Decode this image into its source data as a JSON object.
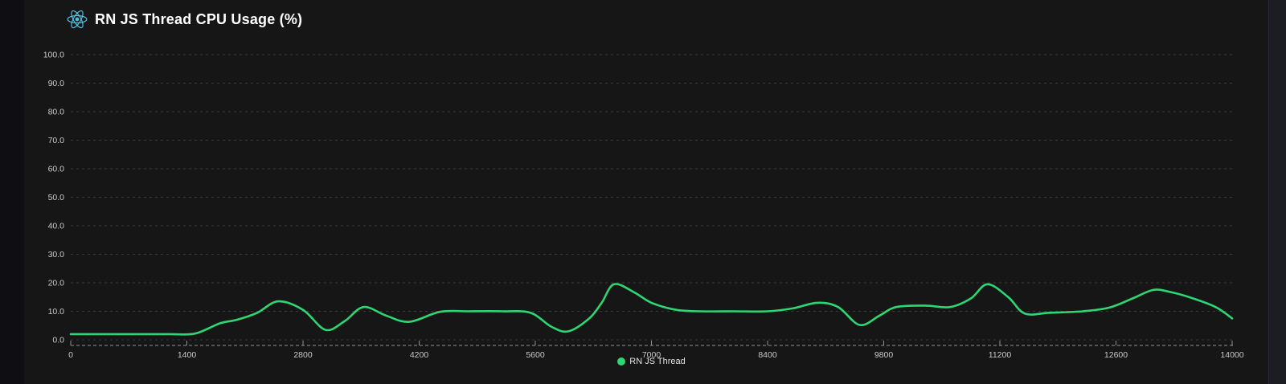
{
  "page": {
    "background": "#0f0f13",
    "card_background": "#161616",
    "right_strip_background": "#1c1c23"
  },
  "header": {
    "title": "RN JS Thread CPU Usage (%)",
    "icon": "react-logo-icon",
    "icon_color": "#53c1de"
  },
  "legend": {
    "label": "RN JS Thread",
    "marker_color": "#2ed573"
  },
  "colors": {
    "line": "#2ed573",
    "gridline": "#3a3a3c",
    "axis": "#909094",
    "tick_label": "#c9c9c9",
    "title_text": "#ffffff"
  },
  "chart_data": {
    "type": "line",
    "title": "RN JS Thread CPU Usage (%)",
    "xlabel": "",
    "ylabel": "",
    "xlim": [
      0,
      14000
    ],
    "ylim": [
      0,
      100
    ],
    "grid": "dashed-horizontal",
    "legend_position": "bottom-center",
    "x_ticks": [
      0,
      1400,
      2800,
      4200,
      5600,
      7000,
      8400,
      9800,
      11200,
      12600,
      14000
    ],
    "x_tick_labels": [
      "0",
      "1400",
      "2800",
      "4200",
      "5600",
      "7000",
      "8400",
      "9800",
      "11200",
      "12600",
      "14000"
    ],
    "y_ticks": [
      0,
      10,
      20,
      30,
      40,
      50,
      60,
      70,
      80,
      90,
      100
    ],
    "y_tick_labels": [
      "0.0",
      "10.0",
      "20.0",
      "30.0",
      "40.0",
      "50.0",
      "60.0",
      "70.0",
      "80.0",
      "90.0",
      "100.0"
    ],
    "series": [
      {
        "name": "RN JS Thread",
        "color": "#2ed573",
        "points": [
          [
            0,
            2
          ],
          [
            400,
            2
          ],
          [
            800,
            2
          ],
          [
            1200,
            2
          ],
          [
            1500,
            2.2
          ],
          [
            1800,
            5.8
          ],
          [
            2000,
            7
          ],
          [
            2250,
            9.5
          ],
          [
            2500,
            13.5
          ],
          [
            2800,
            10.5
          ],
          [
            3070,
            3.5
          ],
          [
            3300,
            6.5
          ],
          [
            3530,
            11.5
          ],
          [
            3800,
            8.5
          ],
          [
            4080,
            6.3
          ],
          [
            4450,
            9.8
          ],
          [
            4800,
            10
          ],
          [
            5200,
            10
          ],
          [
            5540,
            9.5
          ],
          [
            5800,
            4.5
          ],
          [
            6000,
            3
          ],
          [
            6250,
            7.5
          ],
          [
            6400,
            13
          ],
          [
            6550,
            19.5
          ],
          [
            6800,
            16.5
          ],
          [
            7000,
            13
          ],
          [
            7300,
            10.5
          ],
          [
            7600,
            10
          ],
          [
            8000,
            10
          ],
          [
            8400,
            10
          ],
          [
            8700,
            11
          ],
          [
            9000,
            13
          ],
          [
            9250,
            11.5
          ],
          [
            9510,
            5.2
          ],
          [
            9750,
            8.5
          ],
          [
            9950,
            11.5
          ],
          [
            10300,
            12
          ],
          [
            10600,
            11.5
          ],
          [
            10850,
            14.5
          ],
          [
            11050,
            19.5
          ],
          [
            11300,
            15
          ],
          [
            11500,
            9.2
          ],
          [
            11800,
            9.5
          ],
          [
            12200,
            10
          ],
          [
            12520,
            11.3
          ],
          [
            12800,
            14.5
          ],
          [
            13050,
            17.5
          ],
          [
            13250,
            16.8
          ],
          [
            13500,
            14.8
          ],
          [
            13800,
            11.5
          ],
          [
            14000,
            7.5
          ]
        ]
      }
    ]
  }
}
